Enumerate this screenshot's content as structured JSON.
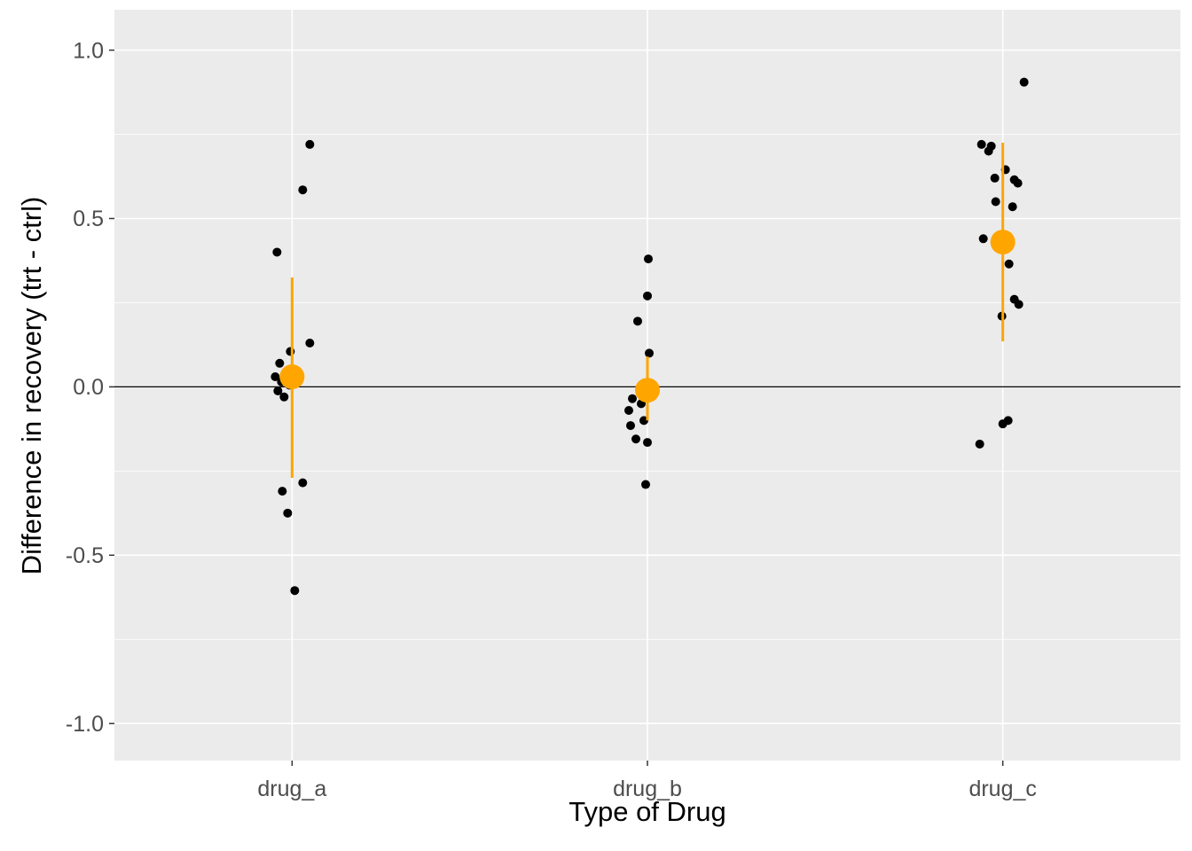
{
  "chart_data": {
    "type": "scatter",
    "subtype": "jitter-with-pointrange",
    "title": "",
    "xlabel": "Type of Drug",
    "ylabel": "Difference in recovery (trt - ctrl)",
    "categories": [
      "drug_a",
      "drug_b",
      "drug_c"
    ],
    "ylim": [
      -1.11,
      1.12
    ],
    "grid": true,
    "legend_position": "none",
    "reference_line_y": 0,
    "yticks": [
      {
        "value": 1.0,
        "label": "1.0"
      },
      {
        "value": 0.5,
        "label": "0.5"
      },
      {
        "value": 0.0,
        "label": "0.0"
      },
      {
        "value": -0.5,
        "label": "-0.5"
      },
      {
        "value": -1.0,
        "label": "-1.0"
      }
    ],
    "minor_yticks": [
      0.75,
      0.25,
      -0.25,
      -0.75
    ],
    "colors": {
      "points": "#000000",
      "summary": "#FFA500",
      "panel_background": "#EBEBEB",
      "gridline": "#FFFFFF",
      "tick_text": "#4D4D4D",
      "tick_mark": "#333333",
      "axis_title": "#000000",
      "reference_line": "#000000"
    },
    "series": [
      {
        "category": "drug_a",
        "summary": {
          "mean": 0.03,
          "lower": -0.27,
          "upper": 0.325
        },
        "points": [
          {
            "dx": 20,
            "y": 0.72
          },
          {
            "dx": 12,
            "y": 0.585
          },
          {
            "dx": -17,
            "y": 0.4
          },
          {
            "dx": 20,
            "y": 0.13
          },
          {
            "dx": -2,
            "y": 0.105
          },
          {
            "dx": -14,
            "y": 0.07
          },
          {
            "dx": -19,
            "y": 0.03
          },
          {
            "dx": -12,
            "y": 0.015
          },
          {
            "dx": -3,
            "y": 0.005
          },
          {
            "dx": -16,
            "y": -0.012
          },
          {
            "dx": -9,
            "y": -0.03
          },
          {
            "dx": 12,
            "y": -0.285
          },
          {
            "dx": -11,
            "y": -0.31
          },
          {
            "dx": -5,
            "y": -0.375
          },
          {
            "dx": 3,
            "y": -0.605
          }
        ]
      },
      {
        "category": "drug_b",
        "summary": {
          "mean": -0.01,
          "lower": -0.1,
          "upper": 0.09
        },
        "points": [
          {
            "dx": 1,
            "y": 0.38
          },
          {
            "dx": 0,
            "y": 0.27
          },
          {
            "dx": -11,
            "y": 0.195
          },
          {
            "dx": 2,
            "y": 0.1
          },
          {
            "dx": -17,
            "y": -0.035
          },
          {
            "dx": -7,
            "y": -0.05
          },
          {
            "dx": -21,
            "y": -0.07
          },
          {
            "dx": -4,
            "y": -0.1
          },
          {
            "dx": -19,
            "y": -0.115
          },
          {
            "dx": -13,
            "y": -0.155
          },
          {
            "dx": 0,
            "y": -0.165
          },
          {
            "dx": -2,
            "y": -0.29
          }
        ]
      },
      {
        "category": "drug_c",
        "summary": {
          "mean": 0.43,
          "lower": 0.135,
          "upper": 0.725
        },
        "points": [
          {
            "dx": 24,
            "y": 0.905
          },
          {
            "dx": -24,
            "y": 0.72
          },
          {
            "dx": -13,
            "y": 0.715
          },
          {
            "dx": -16,
            "y": 0.7
          },
          {
            "dx": 3,
            "y": 0.645
          },
          {
            "dx": -9,
            "y": 0.62
          },
          {
            "dx": 13,
            "y": 0.615
          },
          {
            "dx": 17,
            "y": 0.605
          },
          {
            "dx": -8,
            "y": 0.55
          },
          {
            "dx": 11,
            "y": 0.535
          },
          {
            "dx": -22,
            "y": 0.44
          },
          {
            "dx": 7,
            "y": 0.365
          },
          {
            "dx": 13,
            "y": 0.26
          },
          {
            "dx": 18,
            "y": 0.245
          },
          {
            "dx": -1,
            "y": 0.21
          },
          {
            "dx": 6,
            "y": -0.1
          },
          {
            "dx": 0,
            "y": -0.11
          },
          {
            "dx": -26,
            "y": -0.17
          }
        ]
      }
    ]
  }
}
